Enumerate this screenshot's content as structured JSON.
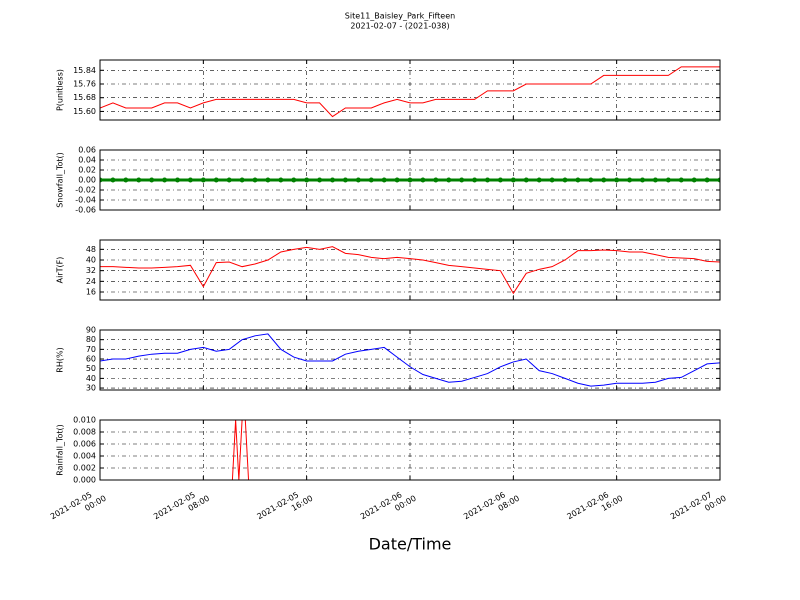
{
  "chart_data": [
    {
      "type": "line",
      "title": "Site11_Baisley_Park_Fifteen",
      "subtitle": "2021-02-07 - (2021-038)",
      "ylabel": "P(unitless)",
      "color": "#ff0000",
      "x": [
        "2021-02-05 00:00",
        "2021-02-05 01:00",
        "2021-02-05 02:00",
        "2021-02-05 03:00",
        "2021-02-05 04:00",
        "2021-02-05 05:00",
        "2021-02-05 06:00",
        "2021-02-05 07:00",
        "2021-02-05 08:00",
        "2021-02-05 09:00",
        "2021-02-05 10:00",
        "2021-02-05 11:00",
        "2021-02-05 12:00",
        "2021-02-05 13:00",
        "2021-02-05 14:00",
        "2021-02-05 15:00",
        "2021-02-05 16:00",
        "2021-02-05 17:00",
        "2021-02-05 18:00",
        "2021-02-05 19:00",
        "2021-02-05 20:00",
        "2021-02-05 21:00",
        "2021-02-05 22:00",
        "2021-02-05 23:00",
        "2021-02-06 00:00",
        "2021-02-06 01:00",
        "2021-02-06 02:00",
        "2021-02-06 03:00",
        "2021-02-06 04:00",
        "2021-02-06 05:00",
        "2021-02-06 06:00",
        "2021-02-06 07:00",
        "2021-02-06 08:00",
        "2021-02-06 09:00",
        "2021-02-06 10:00",
        "2021-02-06 11:00",
        "2021-02-06 12:00",
        "2021-02-06 13:00",
        "2021-02-06 14:00",
        "2021-02-06 15:00",
        "2021-02-06 16:00",
        "2021-02-06 17:00",
        "2021-02-06 18:00",
        "2021-02-06 19:00",
        "2021-02-06 20:00",
        "2021-02-06 21:00",
        "2021-02-06 22:00",
        "2021-02-06 23:00",
        "2021-02-07 00:00"
      ],
      "values": [
        15.62,
        15.65,
        15.62,
        15.62,
        15.62,
        15.65,
        15.65,
        15.62,
        15.65,
        15.67,
        15.67,
        15.67,
        15.67,
        15.67,
        15.67,
        15.67,
        15.65,
        15.65,
        15.57,
        15.62,
        15.62,
        15.62,
        15.65,
        15.67,
        15.65,
        15.65,
        15.67,
        15.67,
        15.67,
        15.67,
        15.72,
        15.72,
        15.72,
        15.76,
        15.76,
        15.76,
        15.76,
        15.76,
        15.76,
        15.81,
        15.81,
        15.81,
        15.81,
        15.81,
        15.81,
        15.86,
        15.86,
        15.86,
        15.86
      ],
      "ylim": [
        15.55,
        15.9
      ],
      "yticks": [
        {
          "value": 15.6,
          "label": "15.60"
        },
        15.68,
        15.76,
        15.84
      ],
      "grid": true
    },
    {
      "type": "line",
      "ylabel": "Snowfall_Tot()",
      "color": "#008000",
      "marker": "o",
      "x": [
        "2021-02-05 00:00",
        "2021-02-05 01:00",
        "2021-02-05 02:00",
        "2021-02-05 03:00",
        "2021-02-05 04:00",
        "2021-02-05 05:00",
        "2021-02-05 06:00",
        "2021-02-05 07:00",
        "2021-02-05 08:00",
        "2021-02-05 09:00",
        "2021-02-05 10:00",
        "2021-02-05 11:00",
        "2021-02-05 12:00",
        "2021-02-05 13:00",
        "2021-02-05 14:00",
        "2021-02-05 15:00",
        "2021-02-05 16:00",
        "2021-02-05 17:00",
        "2021-02-05 18:00",
        "2021-02-05 19:00",
        "2021-02-05 20:00",
        "2021-02-05 21:00",
        "2021-02-05 22:00",
        "2021-02-05 23:00",
        "2021-02-06 00:00",
        "2021-02-06 01:00",
        "2021-02-06 02:00",
        "2021-02-06 03:00",
        "2021-02-06 04:00",
        "2021-02-06 05:00",
        "2021-02-06 06:00",
        "2021-02-06 07:00",
        "2021-02-06 08:00",
        "2021-02-06 09:00",
        "2021-02-06 10:00",
        "2021-02-06 11:00",
        "2021-02-06 12:00",
        "2021-02-06 13:00",
        "2021-02-06 14:00",
        "2021-02-06 15:00",
        "2021-02-06 16:00",
        "2021-02-06 17:00",
        "2021-02-06 18:00",
        "2021-02-06 19:00",
        "2021-02-06 20:00",
        "2021-02-06 21:00",
        "2021-02-06 22:00",
        "2021-02-06 23:00",
        "2021-02-07 00:00"
      ],
      "values": [
        0,
        0,
        0,
        0,
        0,
        0,
        0,
        0,
        0,
        0,
        0,
        0,
        0,
        0,
        0,
        0,
        0,
        0,
        0,
        0,
        0,
        0,
        0,
        0,
        0,
        0,
        0,
        0,
        0,
        0,
        0,
        0,
        0,
        0,
        0,
        0,
        0,
        0,
        0,
        0,
        0,
        0,
        0,
        0,
        0,
        0,
        0,
        0,
        0
      ],
      "ylim": [
        -0.06,
        0.06
      ],
      "yticks": [
        -0.06,
        -0.04,
        -0.02,
        {
          "value": 0,
          "label": "0.00"
        },
        0.02,
        0.04,
        0.06
      ],
      "grid": true
    },
    {
      "type": "line",
      "ylabel": "AirT(F)",
      "color": "#ff0000",
      "x": [
        "2021-02-05 00:00",
        "2021-02-05 01:00",
        "2021-02-05 02:00",
        "2021-02-05 03:00",
        "2021-02-05 04:00",
        "2021-02-05 05:00",
        "2021-02-05 06:00",
        "2021-02-05 07:00",
        "2021-02-05 08:00",
        "2021-02-05 09:00",
        "2021-02-05 10:00",
        "2021-02-05 11:00",
        "2021-02-05 12:00",
        "2021-02-05 13:00",
        "2021-02-05 14:00",
        "2021-02-05 15:00",
        "2021-02-05 16:00",
        "2021-02-05 17:00",
        "2021-02-05 18:00",
        "2021-02-05 19:00",
        "2021-02-05 20:00",
        "2021-02-05 21:00",
        "2021-02-05 22:00",
        "2021-02-05 23:00",
        "2021-02-06 00:00",
        "2021-02-06 01:00",
        "2021-02-06 02:00",
        "2021-02-06 03:00",
        "2021-02-06 04:00",
        "2021-02-06 05:00",
        "2021-02-06 06:00",
        "2021-02-06 07:00",
        "2021-02-06 08:00",
        "2021-02-06 09:00",
        "2021-02-06 10:00",
        "2021-02-06 11:00",
        "2021-02-06 12:00",
        "2021-02-06 13:00",
        "2021-02-06 14:00",
        "2021-02-06 15:00",
        "2021-02-06 16:00",
        "2021-02-06 17:00",
        "2021-02-06 18:00",
        "2021-02-06 19:00",
        "2021-02-06 20:00",
        "2021-02-06 21:00",
        "2021-02-06 22:00",
        "2021-02-06 23:00",
        "2021-02-07 00:00"
      ],
      "values": [
        35,
        35,
        34.5,
        34,
        34,
        34.5,
        35,
        36,
        20,
        38,
        38.5,
        35,
        37,
        40,
        46,
        48,
        49.5,
        48,
        50,
        45,
        44,
        42,
        41,
        42,
        41,
        40,
        38,
        36,
        35,
        34,
        33,
        32,
        15,
        30,
        33,
        35,
        40,
        47,
        47,
        47.5,
        47,
        46,
        46,
        44,
        42,
        41.5,
        41,
        39,
        38.5
      ],
      "ylim": [
        10,
        55
      ],
      "yticks": [
        16,
        24,
        32,
        40,
        48
      ],
      "grid": true
    },
    {
      "type": "line",
      "ylabel": "RH(%)",
      "color": "#0000ff",
      "x": [
        "2021-02-05 00:00",
        "2021-02-05 01:00",
        "2021-02-05 02:00",
        "2021-02-05 03:00",
        "2021-02-05 04:00",
        "2021-02-05 05:00",
        "2021-02-05 06:00",
        "2021-02-05 07:00",
        "2021-02-05 08:00",
        "2021-02-05 09:00",
        "2021-02-05 10:00",
        "2021-02-05 11:00",
        "2021-02-05 12:00",
        "2021-02-05 13:00",
        "2021-02-05 14:00",
        "2021-02-05 15:00",
        "2021-02-05 16:00",
        "2021-02-05 17:00",
        "2021-02-05 18:00",
        "2021-02-05 19:00",
        "2021-02-05 20:00",
        "2021-02-05 21:00",
        "2021-02-05 22:00",
        "2021-02-05 23:00",
        "2021-02-06 00:00",
        "2021-02-06 01:00",
        "2021-02-06 02:00",
        "2021-02-06 03:00",
        "2021-02-06 04:00",
        "2021-02-06 05:00",
        "2021-02-06 06:00",
        "2021-02-06 07:00",
        "2021-02-06 08:00",
        "2021-02-06 09:00",
        "2021-02-06 10:00",
        "2021-02-06 11:00",
        "2021-02-06 12:00",
        "2021-02-06 13:00",
        "2021-02-06 14:00",
        "2021-02-06 15:00",
        "2021-02-06 16:00",
        "2021-02-06 17:00",
        "2021-02-06 18:00",
        "2021-02-06 19:00",
        "2021-02-06 20:00",
        "2021-02-06 21:00",
        "2021-02-06 22:00",
        "2021-02-06 23:00",
        "2021-02-07 00:00"
      ],
      "values": [
        58,
        60,
        60,
        63,
        65,
        66,
        66,
        70,
        72,
        68,
        70,
        80,
        84,
        86,
        70,
        62,
        58,
        58,
        58,
        65,
        68,
        70,
        72,
        62,
        52,
        44,
        40,
        36,
        37,
        41,
        45,
        52,
        57,
        60,
        48,
        45,
        40,
        35,
        32,
        33,
        35,
        35,
        35,
        36,
        40,
        41,
        48,
        55,
        56
      ],
      "ylim": [
        28,
        90
      ],
      "yticks": [
        30,
        40,
        50,
        60,
        70,
        80,
        90
      ],
      "grid": true
    },
    {
      "type": "line",
      "ylabel": "Rainfall_Tot()",
      "xlabel": "Date/Time",
      "color": "#ff0000",
      "x": [
        "2021-02-05 00:00",
        "2021-02-05 10:15",
        "2021-02-05 10:30",
        "2021-02-05 10:45",
        "2021-02-05 11:00",
        "2021-02-05 11:15",
        "2021-02-05 11:30",
        "2021-02-07 00:00"
      ],
      "values": [
        0,
        0,
        0.01,
        0,
        0.01,
        0.01,
        0,
        0
      ],
      "ylim": [
        0,
        0.01
      ],
      "yticks": [
        {
          "value": 0,
          "label": "0.000"
        },
        0.002,
        0.004,
        0.006,
        0.008,
        {
          "value": 0.01,
          "label": "0.010"
        }
      ],
      "grid": true,
      "xlim": [
        "2021-02-05 00:00",
        "2021-02-07 00:00"
      ],
      "xticks": [
        "2021-02-05 00:00",
        "2021-02-05 08:00",
        "2021-02-05 16:00",
        "2021-02-06 00:00",
        "2021-02-06 08:00",
        "2021-02-06 16:00",
        "2021-02-07 00:00"
      ]
    }
  ]
}
